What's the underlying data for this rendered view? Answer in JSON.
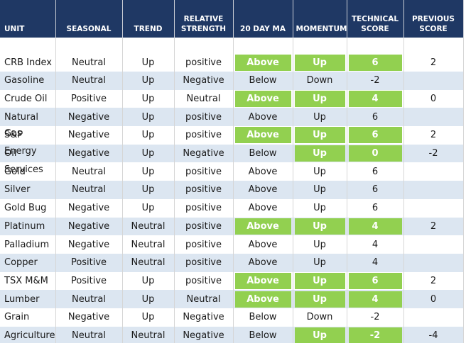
{
  "table": {
    "header": [
      "UNIT",
      "SEASONAL",
      "TREND",
      "RELATIVE STRENGTH",
      "20 DAY MA",
      "MOMENTUM",
      "TECHNICAL SCORE",
      "PREVIOUS SCORE"
    ],
    "header_color": "#1f3864",
    "stripe_color": "#dce6f1",
    "highlight_color": "#92d050",
    "rows": [
      {
        "cells": [
          "CRB Index",
          "Neutral",
          "Up",
          "positive",
          "Above",
          "Up",
          "6",
          "2"
        ],
        "highlight": [
          4,
          5,
          6
        ]
      },
      {
        "cells": [
          "Gasoline",
          "Neutral",
          "Up",
          "Negative",
          "Below",
          "Down",
          "-2",
          ""
        ],
        "highlight": []
      },
      {
        "cells": [
          "Crude Oil",
          "Positive",
          "Up",
          "Neutral",
          "Above",
          "Up",
          "4",
          "0"
        ],
        "highlight": [
          4,
          5,
          6
        ]
      },
      {
        "cells": [
          "Natural Gas",
          "Negative",
          "Up",
          "positive",
          "Above",
          "Up",
          "6",
          ""
        ],
        "highlight": []
      },
      {
        "cells": [
          "S&P Energy",
          "Negative",
          "Up",
          "positive",
          "Above",
          "Up",
          "6",
          "2"
        ],
        "highlight": [
          4,
          5,
          6
        ]
      },
      {
        "cells": [
          "Oil Services",
          "Negative",
          "Up",
          "Negative",
          "Below",
          "Up",
          "0",
          "-2"
        ],
        "highlight": [
          5,
          6
        ]
      },
      {
        "cells": [
          "Gold",
          "Neutral",
          "Up",
          "positive",
          "Above",
          "Up",
          "6",
          ""
        ],
        "highlight": []
      },
      {
        "cells": [
          "Silver",
          "Neutral",
          "Up",
          "positive",
          "Above",
          "Up",
          "6",
          ""
        ],
        "highlight": []
      },
      {
        "cells": [
          "Gold Bug",
          "Negative",
          "Up",
          "positive",
          "Above",
          "Up",
          "6",
          ""
        ],
        "highlight": []
      },
      {
        "cells": [
          "Platinum",
          "Negative",
          "Neutral",
          "positive",
          "Above",
          "Up",
          "4",
          "2"
        ],
        "highlight": [
          4,
          5,
          6
        ]
      },
      {
        "cells": [
          "Palladium",
          "Negative",
          "Neutral",
          "positive",
          "Above",
          "Up",
          "4",
          ""
        ],
        "highlight": []
      },
      {
        "cells": [
          "Copper",
          "Positive",
          "Neutral",
          "positive",
          "Above",
          "Up",
          "4",
          ""
        ],
        "highlight": []
      },
      {
        "cells": [
          "TSX M&M",
          "Positive",
          "Up",
          "positive",
          "Above",
          "Up",
          "6",
          "2"
        ],
        "highlight": [
          4,
          5,
          6
        ]
      },
      {
        "cells": [
          "Lumber",
          "Neutral",
          "Up",
          "Neutral",
          "Above",
          "Up",
          "4",
          "0"
        ],
        "highlight": [
          4,
          5,
          6
        ]
      },
      {
        "cells": [
          "Grain",
          "Negative",
          "Up",
          "Negative",
          "Below",
          "Down",
          "-2",
          ""
        ],
        "highlight": []
      },
      {
        "cells": [
          "Agriculture",
          "Neutral",
          "Neutral",
          "Negative",
          "Below",
          "Up",
          "-2",
          "-4"
        ],
        "highlight": [
          5,
          6
        ]
      }
    ]
  }
}
